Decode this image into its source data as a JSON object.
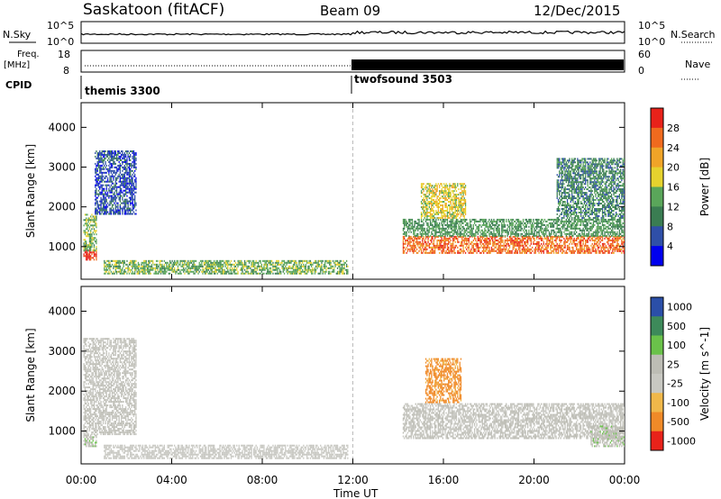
{
  "header": {
    "site": "Saskatoon (fitACF)",
    "beam": "Beam 09",
    "date": "12/Dec/2015"
  },
  "top_panels": {
    "nsky_label": "N.Sky",
    "nsearch_label": "N.Search",
    "left_ticks_top": [
      "10^5",
      "10^0"
    ],
    "right_ticks_top": [
      "10^5",
      "10^0"
    ],
    "freq_label": "Freq.",
    "freq_unit": "[MHz]",
    "freq_ticks": [
      "18",
      "8"
    ],
    "nave_label": "Nave",
    "nave_ticks": [
      "60",
      "0"
    ],
    "cpid_label": "CPID",
    "cpid_segments": [
      {
        "name": "themis 3300",
        "start_hour": 0,
        "end_hour": 12
      },
      {
        "name": "twofsound 3503",
        "start_hour": 12,
        "end_hour": 24
      }
    ]
  },
  "x_axis": {
    "label": "Time UT",
    "ticks": [
      "00:00",
      "04:00",
      "08:00",
      "12:00",
      "16:00",
      "20:00",
      "00:00"
    ],
    "range_hours": [
      0,
      24
    ]
  },
  "chart_data": [
    {
      "type": "heatmap",
      "title": "Power",
      "ylabel": "Slant Range [km]",
      "yticks": [
        1000,
        2000,
        3000,
        4000
      ],
      "ylim": [
        180,
        4620
      ],
      "colorbar": {
        "label": "Power [dB]",
        "ticks": [
          "4",
          "8",
          "12",
          "16",
          "20",
          "24",
          "28"
        ],
        "range": [
          0,
          32
        ],
        "colors": [
          "#0000ee",
          "#2f4fa8",
          "#3a7d52",
          "#5aa65a",
          "#e6d22e",
          "#f0a428",
          "#f06a1e",
          "#e8221a"
        ]
      },
      "regions": [
        {
          "t0": 0.1,
          "t1": 0.7,
          "r0": 650,
          "r1": 880,
          "level": 30
        },
        {
          "t0": 0.1,
          "t1": 0.7,
          "r0": 880,
          "r1": 1800,
          "level": 14
        },
        {
          "t0": 0.6,
          "t1": 2.4,
          "r0": 1800,
          "r1": 3400,
          "level": 6
        },
        {
          "t0": 1.0,
          "t1": 11.8,
          "r0": 300,
          "r1": 650,
          "level": 14
        },
        {
          "t0": 14.2,
          "t1": 24.0,
          "r0": 820,
          "r1": 1250,
          "level": 26
        },
        {
          "t0": 14.2,
          "t1": 24.0,
          "r0": 1250,
          "r1": 1700,
          "level": 12
        },
        {
          "t0": 15.0,
          "t1": 17.0,
          "r0": 1700,
          "r1": 2600,
          "level": 18
        },
        {
          "t0": 21.0,
          "t1": 24.0,
          "r0": 1700,
          "r1": 3200,
          "level": 10
        }
      ]
    },
    {
      "type": "heatmap",
      "title": "Velocity",
      "ylabel": "Slant Range [km]",
      "yticks": [
        1000,
        2000,
        3000,
        4000
      ],
      "ylim": [
        180,
        4620
      ],
      "colorbar": {
        "label": "Velocity [m s^-1]",
        "ticks": [
          "1000",
          "500",
          "100",
          "25",
          "-25",
          "-100",
          "-500",
          "-1000"
        ],
        "range": [
          -1200,
          1200
        ],
        "colors": [
          "#2b4fa8",
          "#3d8a5a",
          "#6ac24a",
          "#bdbdb5",
          "#c8c8c2",
          "#f0b84a",
          "#f08a28",
          "#e8221a"
        ]
      },
      "regions": [
        {
          "t0": 0.1,
          "t1": 0.7,
          "r0": 600,
          "r1": 900,
          "velocity": 200
        },
        {
          "t0": 0.1,
          "t1": 2.4,
          "r0": 900,
          "r1": 3300,
          "velocity": 0
        },
        {
          "t0": 1.0,
          "t1": 11.8,
          "r0": 300,
          "r1": 650,
          "velocity": -150
        },
        {
          "t0": 14.2,
          "t1": 24.0,
          "r0": 800,
          "r1": 1700,
          "velocity": 0
        },
        {
          "t0": 15.2,
          "t1": 16.8,
          "r0": 1700,
          "r1": 2800,
          "velocity": -700
        },
        {
          "t0": 22.5,
          "t1": 24.0,
          "r0": 600,
          "r1": 1100,
          "velocity": 200
        }
      ]
    }
  ]
}
